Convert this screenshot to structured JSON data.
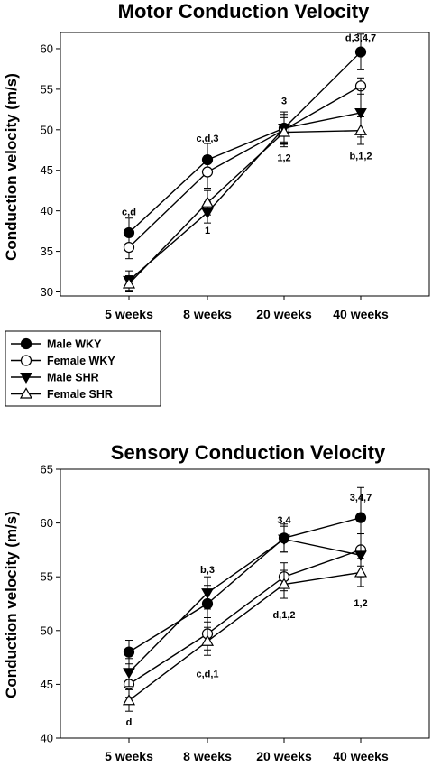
{
  "chart_data": [
    {
      "type": "line",
      "title": "Motor Conduction Velocity",
      "ylabel": "Conduction velocity (m/s)",
      "xlabel": "",
      "categories": [
        "5 weeks",
        "8 weeks",
        "20 weeks",
        "40 weeks"
      ],
      "ylim": [
        29.5,
        62
      ],
      "yticks": [
        30,
        35,
        40,
        45,
        50,
        55,
        60
      ],
      "grid": false,
      "legend": "bottom-left",
      "series": [
        {
          "name": "Male WKY",
          "marker": "filled-circle",
          "values": [
            37.3,
            46.3,
            50.2,
            59.6
          ],
          "errors": [
            1.8,
            2.0,
            1.7,
            2.2
          ]
        },
        {
          "name": "Female WKY",
          "marker": "open-circle",
          "values": [
            35.5,
            44.8,
            50.0,
            55.4
          ],
          "errors": [
            1.4,
            2.0,
            1.7,
            1.0
          ]
        },
        {
          "name": "Male SHR",
          "marker": "filled-triangle-down",
          "values": [
            31.4,
            39.8,
            50.2,
            52.1
          ],
          "errors": [
            1.2,
            1.3,
            2.0,
            3.0
          ]
        },
        {
          "name": "Female SHR",
          "marker": "open-triangle-up",
          "values": [
            31.0,
            41.0,
            49.7,
            49.9
          ],
          "errors": [
            1.0,
            1.5,
            1.8,
            1.7
          ]
        }
      ],
      "annotations": [
        {
          "text": "c,d",
          "x": "5 weeks",
          "y": 39.9
        },
        {
          "text": "c,d,3",
          "x": "8 weeks",
          "y": 49.0
        },
        {
          "text": "1",
          "x": "8 weeks",
          "y": 37.6
        },
        {
          "text": "3",
          "x": "20 weeks",
          "y": 53.6
        },
        {
          "text": "1,2",
          "x": "20 weeks",
          "y": 46.6
        },
        {
          "text": "d,3,4,7",
          "x": "40 weeks",
          "y": 61.4
        },
        {
          "text": "b,1,2",
          "x": "40 weeks",
          "y": 46.8
        }
      ]
    },
    {
      "type": "line",
      "title": "Sensory Conduction Velocity",
      "ylabel": "Conduction velocity (m/s)",
      "xlabel": "",
      "categories": [
        "5 weeks",
        "8 weeks",
        "20 weeks",
        "40 weeks"
      ],
      "ylim": [
        40,
        65
      ],
      "yticks": [
        40,
        45,
        50,
        55,
        60,
        65
      ],
      "grid": false,
      "series": [
        {
          "name": "Male WKY",
          "marker": "filled-circle",
          "values": [
            48.0,
            52.5,
            58.6,
            60.5
          ],
          "errors": [
            1.1,
            1.7,
            1.3,
            2.8
          ]
        },
        {
          "name": "Female WKY",
          "marker": "open-circle",
          "values": [
            45.0,
            49.7,
            55.0,
            57.5
          ],
          "errors": [
            1.2,
            1.5,
            1.3,
            1.5
          ]
        },
        {
          "name": "Male SHR",
          "marker": "filled-triangle-down",
          "values": [
            46.1,
            53.5,
            58.5,
            57.0
          ],
          "errors": [
            1.3,
            1.5,
            1.2,
            2.0
          ]
        },
        {
          "name": "Female SHR",
          "marker": "open-triangle-up",
          "values": [
            43.5,
            49.0,
            54.3,
            55.4
          ],
          "errors": [
            1.0,
            1.3,
            1.3,
            1.3
          ]
        }
      ],
      "annotations": [
        {
          "text": "b,3",
          "x": "8 weeks",
          "y": 55.7
        },
        {
          "text": "c,d,1",
          "x": "8 weeks",
          "y": 46.0
        },
        {
          "text": "3,4",
          "x": "20 weeks",
          "y": 60.3
        },
        {
          "text": "d,1,2",
          "x": "20 weeks",
          "y": 51.5
        },
        {
          "text": "3,4,7",
          "x": "40 weeks",
          "y": 62.4
        },
        {
          "text": "1,2",
          "x": "40 weeks",
          "y": 52.6
        },
        {
          "text": "d",
          "x": "5 weeks",
          "y": 41.5
        }
      ]
    }
  ]
}
